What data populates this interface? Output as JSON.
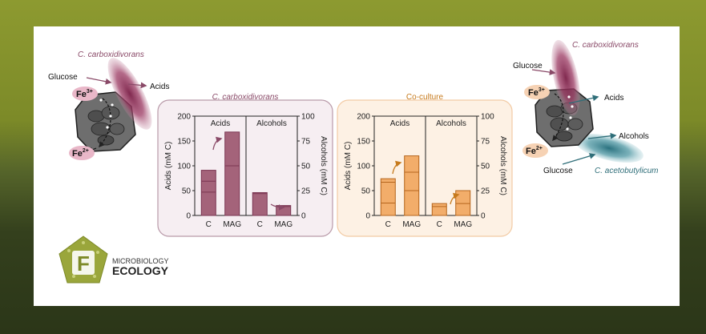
{
  "colors": {
    "maroon": "#a4637a",
    "maroon_dark": "#7a3552",
    "maroon_label": "#8a4a68",
    "orange": "#f2ad6a",
    "orange_label": "#c67a1c",
    "teal": "#4f8e98",
    "teal_dark": "#2f6e79",
    "frame_mauve": "#b99aa9",
    "frame_orange": "#f2cba5",
    "bg_mauve": "#f6eef2",
    "bg_orange": "#fdf1e4"
  },
  "left_diagram": {
    "organism": "C. carboxidivorans",
    "glucose": "Glucose",
    "acids": "Acids",
    "fe3": "Fe",
    "fe3_sup": "3+",
    "fe2": "Fe",
    "fe2_sup": "2+"
  },
  "right_diagram": {
    "organism_top": "C. carboxidivorans",
    "organism_bottom": "C. acetobutylicum",
    "glucose_top": "Glucose",
    "glucose_bottom": "Glucose",
    "acids": "Acids",
    "alcohols": "Alcohols",
    "fe3": "Fe",
    "fe3_sup": "3+",
    "fe2": "Fe",
    "fe2_sup": "2+"
  },
  "logo": {
    "letter": "F",
    "line1": "MICROBIOLOGY",
    "line2": "ECOLOGY"
  },
  "chart_data": [
    {
      "type": "bar",
      "title": "C. carboxidivorans",
      "ylabel": "Acids (mM C)",
      "y2label": "Alcohols (mM C)",
      "ylim": [
        0,
        200
      ],
      "y2lim": [
        0,
        100
      ],
      "yticks": [
        0,
        50,
        100,
        150,
        200
      ],
      "y2ticks": [
        0,
        25,
        50,
        75,
        100
      ],
      "groups": [
        {
          "label": "Acids",
          "axis": "left",
          "categories": [
            "C",
            "MAG"
          ],
          "values": [
            91,
            168
          ],
          "segments": [
            [
              47,
              69
            ],
            [
              100
            ]
          ]
        },
        {
          "label": "Alcohols",
          "axis": "right",
          "categories": [
            "C",
            "MAG"
          ],
          "values": [
            23,
            10
          ],
          "segments": [
            [
              22
            ],
            [
              9
            ]
          ]
        }
      ]
    },
    {
      "type": "bar",
      "title": "Co-culture",
      "ylabel": "Acids (mM C)",
      "y2label": "Alcohols (mM C)",
      "ylim": [
        0,
        200
      ],
      "y2lim": [
        0,
        100
      ],
      "yticks": [
        0,
        50,
        100,
        150,
        200
      ],
      "y2ticks": [
        0,
        25,
        50,
        75,
        100
      ],
      "groups": [
        {
          "label": "Acids",
          "axis": "left",
          "categories": [
            "C",
            "MAG"
          ],
          "values": [
            74,
            120
          ],
          "segments": [
            [
              25,
              67
            ],
            [
              50,
              87
            ]
          ]
        },
        {
          "label": "Alcohols",
          "axis": "right",
          "categories": [
            "C",
            "MAG"
          ],
          "values": [
            12,
            25
          ],
          "segments": [
            [
              9
            ],
            [
              12
            ]
          ]
        }
      ]
    }
  ]
}
